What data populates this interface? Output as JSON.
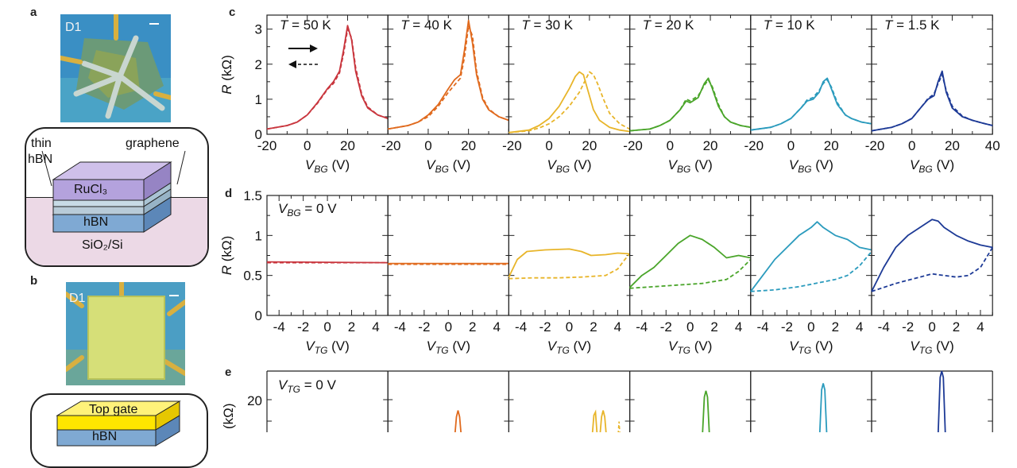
{
  "panels": {
    "a": "a",
    "b": "b",
    "c": "c",
    "d": "d",
    "e": "e"
  },
  "photo_a": {
    "label": "D1"
  },
  "photo_b": {
    "label": "D1"
  },
  "schematic_a": {
    "thin_label": "thin",
    "hbn_thin_label": "hBN",
    "graphene_label": "graphene",
    "rucl3_label": "RuCl₃",
    "hbn_label": "hBN",
    "substrate_label": "SiO₂/Si"
  },
  "schematic_b": {
    "top_gate_label": "Top gate",
    "hbn_label": "hBN"
  },
  "colors": [
    "#c9363e",
    "#e06a1e",
    "#e8b52a",
    "#4aa52a",
    "#2b9bbd",
    "#1d3a96"
  ],
  "temperatures": [
    "T = 50 K",
    "T = 40 K",
    "T = 30 K",
    "T = 20 K",
    "T = 10 K",
    "T = 1.5 K"
  ],
  "chart_data": [
    {
      "type": "line",
      "panel": "c",
      "ylabel": "R (kΩ)",
      "xlabel": "V_BG (V)",
      "xlim": [
        -20,
        40
      ],
      "ylim": [
        0,
        3.4
      ],
      "xticks": [
        -20,
        0,
        20,
        40
      ],
      "yticks": [
        0,
        1,
        2,
        3
      ],
      "annotations": [
        "→",
        "⇠"
      ],
      "subplots": [
        {
          "title": "T = 50 K",
          "series": [
            {
              "style": "solid",
              "x": [
                -20,
                -10,
                -5,
                0,
                5,
                10,
                13,
                16,
                18,
                20,
                22,
                24,
                27,
                30,
                35,
                40
              ],
              "y": [
                0.15,
                0.25,
                0.35,
                0.55,
                0.9,
                1.3,
                1.5,
                1.8,
                2.4,
                3.1,
                2.7,
                1.8,
                1.1,
                0.75,
                0.55,
                0.45
              ]
            },
            {
              "style": "dashed",
              "x": [
                -20,
                -10,
                -5,
                0,
                5,
                10,
                13,
                16,
                18,
                20,
                22,
                24,
                27,
                30,
                35,
                40
              ],
              "y": [
                0.15,
                0.25,
                0.35,
                0.55,
                0.88,
                1.28,
                1.45,
                1.75,
                2.3,
                3.0,
                2.75,
                1.9,
                1.15,
                0.78,
                0.55,
                0.45
              ]
            }
          ]
        },
        {
          "title": "T = 40 K",
          "series": [
            {
              "style": "solid",
              "x": [
                -20,
                -10,
                -5,
                0,
                5,
                10,
                13,
                16,
                18,
                20,
                22,
                24,
                27,
                30,
                35,
                40
              ],
              "y": [
                0.15,
                0.25,
                0.35,
                0.55,
                0.85,
                1.3,
                1.55,
                1.7,
                2.4,
                3.25,
                2.6,
                1.7,
                1.0,
                0.7,
                0.5,
                0.4
              ]
            },
            {
              "style": "dashed",
              "x": [
                -20,
                -10,
                -5,
                0,
                5,
                10,
                13,
                16,
                18,
                20,
                22,
                24,
                27,
                30,
                35,
                40
              ],
              "y": [
                0.15,
                0.25,
                0.35,
                0.5,
                0.8,
                1.2,
                1.4,
                1.6,
                2.2,
                3.1,
                2.8,
                1.8,
                1.05,
                0.72,
                0.5,
                0.4
              ]
            }
          ]
        },
        {
          "title": "T = 30 K",
          "series": [
            {
              "style": "solid",
              "x": [
                -20,
                -10,
                -5,
                0,
                5,
                10,
                13,
                15,
                17,
                19,
                22,
                25,
                30,
                35,
                40
              ],
              "y": [
                0.05,
                0.12,
                0.25,
                0.45,
                0.8,
                1.3,
                1.65,
                1.78,
                1.7,
                1.3,
                0.7,
                0.4,
                0.2,
                0.12,
                0.08
              ]
            },
            {
              "style": "dashed",
              "x": [
                -20,
                -10,
                -5,
                0,
                5,
                10,
                15,
                18,
                20,
                22,
                24,
                27,
                30,
                35,
                40
              ],
              "y": [
                0.05,
                0.1,
                0.18,
                0.3,
                0.5,
                0.8,
                1.2,
                1.55,
                1.78,
                1.7,
                1.45,
                1.0,
                0.6,
                0.3,
                0.15
              ]
            }
          ]
        },
        {
          "title": "T = 20 K",
          "series": [
            {
              "style": "solid",
              "x": [
                -20,
                -10,
                -5,
                0,
                5,
                8,
                10,
                14,
                17,
                19,
                21,
                24,
                27,
                30,
                35,
                40
              ],
              "y": [
                0.1,
                0.15,
                0.25,
                0.4,
                0.7,
                0.95,
                0.9,
                1.05,
                1.45,
                1.6,
                1.3,
                0.8,
                0.5,
                0.35,
                0.25,
                0.2
              ]
            },
            {
              "style": "dashed",
              "x": [
                -20,
                -10,
                -5,
                0,
                5,
                8,
                10,
                14,
                17,
                19,
                21,
                24,
                27,
                30,
                35,
                40
              ],
              "y": [
                0.1,
                0.15,
                0.25,
                0.4,
                0.7,
                1.0,
                0.95,
                1.1,
                1.4,
                1.55,
                1.35,
                0.85,
                0.5,
                0.35,
                0.25,
                0.2
              ]
            }
          ]
        },
        {
          "title": "T = 10 K",
          "series": [
            {
              "style": "solid",
              "x": [
                -20,
                -10,
                -5,
                0,
                5,
                8,
                11,
                14,
                16,
                18,
                20,
                23,
                27,
                30,
                35,
                40
              ],
              "y": [
                0.12,
                0.2,
                0.3,
                0.45,
                0.75,
                0.95,
                1.0,
                1.2,
                1.5,
                1.6,
                1.3,
                0.85,
                0.55,
                0.45,
                0.35,
                0.3
              ]
            },
            {
              "style": "dashed",
              "x": [
                -20,
                -10,
                -5,
                0,
                5,
                8,
                11,
                14,
                16,
                18,
                20,
                23,
                27,
                30,
                35,
                40
              ],
              "y": [
                0.12,
                0.2,
                0.3,
                0.45,
                0.75,
                0.98,
                1.05,
                1.25,
                1.45,
                1.55,
                1.35,
                0.9,
                0.55,
                0.45,
                0.35,
                0.3
              ]
            }
          ]
        },
        {
          "title": "T = 1.5 K",
          "series": [
            {
              "style": "solid",
              "x": [
                -20,
                -10,
                -5,
                0,
                5,
                8,
                11,
                13,
                15,
                17,
                20,
                25,
                30,
                35,
                40
              ],
              "y": [
                0.1,
                0.2,
                0.3,
                0.45,
                0.8,
                1.0,
                1.1,
                1.5,
                1.8,
                1.2,
                0.75,
                0.5,
                0.4,
                0.32,
                0.25
              ]
            },
            {
              "style": "dashed",
              "x": [
                -20,
                -10,
                -5,
                0,
                5,
                8,
                11,
                13,
                15,
                17,
                20,
                25,
                30,
                35,
                40
              ],
              "y": [
                0.1,
                0.2,
                0.3,
                0.45,
                0.8,
                1.02,
                1.15,
                1.45,
                1.7,
                1.25,
                0.8,
                0.52,
                0.4,
                0.32,
                0.25
              ]
            }
          ]
        }
      ]
    },
    {
      "type": "line",
      "panel": "d",
      "ylabel": "R (kΩ)",
      "xlabel": "V_TG (V)",
      "annotation": "V_BG = 0 V",
      "xlim": [
        -5,
        5
      ],
      "ylim": [
        0,
        1.5
      ],
      "xticks": [
        -4,
        -2,
        0,
        2,
        4
      ],
      "yticks": [
        0,
        0.5,
        1,
        1.5
      ],
      "subplots": [
        {
          "series": [
            {
              "style": "solid",
              "x": [
                -5,
                5
              ],
              "y": [
                0.67,
                0.66
              ]
            },
            {
              "style": "dashed",
              "x": [
                -5,
                5
              ],
              "y": [
                0.66,
                0.66
              ]
            }
          ]
        },
        {
          "series": [
            {
              "style": "solid",
              "x": [
                -5,
                5
              ],
              "y": [
                0.65,
                0.65
              ]
            },
            {
              "style": "dashed",
              "x": [
                -5,
                5
              ],
              "y": [
                0.64,
                0.64
              ]
            }
          ]
        },
        {
          "series": [
            {
              "style": "solid",
              "x": [
                -5,
                -4.3,
                -3.5,
                -2,
                0,
                1,
                1.8,
                3,
                4,
                5
              ],
              "y": [
                0.48,
                0.7,
                0.8,
                0.82,
                0.83,
                0.8,
                0.75,
                0.76,
                0.78,
                0.77
              ]
            },
            {
              "style": "dashed",
              "x": [
                -5,
                -3,
                -1,
                1,
                3,
                4,
                4.6,
                5
              ],
              "y": [
                0.46,
                0.47,
                0.47,
                0.48,
                0.5,
                0.58,
                0.7,
                0.77
              ]
            }
          ]
        },
        {
          "series": [
            {
              "style": "solid",
              "x": [
                -5,
                -4,
                -3,
                -2,
                -1,
                0,
                1,
                2,
                3,
                4,
                5
              ],
              "y": [
                0.35,
                0.5,
                0.6,
                0.75,
                0.9,
                1.0,
                0.95,
                0.85,
                0.72,
                0.75,
                0.72
              ]
            },
            {
              "style": "dashed",
              "x": [
                -5,
                -3,
                -1,
                1,
                3,
                4,
                5
              ],
              "y": [
                0.34,
                0.36,
                0.38,
                0.4,
                0.45,
                0.55,
                0.7
              ]
            }
          ]
        },
        {
          "series": [
            {
              "style": "solid",
              "x": [
                -5,
                -4,
                -3,
                -2,
                -1,
                0,
                0.5,
                1,
                2,
                3,
                4,
                5
              ],
              "y": [
                0.3,
                0.5,
                0.7,
                0.85,
                1.0,
                1.1,
                1.17,
                1.1,
                1.0,
                0.95,
                0.85,
                0.82
              ]
            },
            {
              "style": "dashed",
              "x": [
                -5,
                -3,
                -1,
                1,
                2,
                3,
                4,
                5
              ],
              "y": [
                0.3,
                0.32,
                0.36,
                0.42,
                0.45,
                0.5,
                0.62,
                0.8
              ]
            }
          ]
        },
        {
          "series": [
            {
              "style": "solid",
              "x": [
                -5,
                -4,
                -3,
                -2,
                -1,
                0,
                0.5,
                1,
                2,
                3,
                4,
                5
              ],
              "y": [
                0.3,
                0.6,
                0.85,
                1.0,
                1.1,
                1.2,
                1.18,
                1.1,
                1.0,
                0.93,
                0.88,
                0.85
              ]
            },
            {
              "style": "dashed",
              "x": [
                -5,
                -3,
                -1,
                0,
                1,
                2,
                3,
                4,
                5
              ],
              "y": [
                0.3,
                0.4,
                0.48,
                0.52,
                0.5,
                0.48,
                0.5,
                0.6,
                0.85
              ]
            }
          ]
        }
      ]
    },
    {
      "type": "line",
      "panel": "e",
      "ylabel": "R (kΩ)",
      "annotation": "V_TG = 0 V",
      "ytick_labels": [
        "20"
      ],
      "peak_heights": [
        0,
        0,
        14,
        14,
        22,
        25,
        30
      ]
    }
  ]
}
